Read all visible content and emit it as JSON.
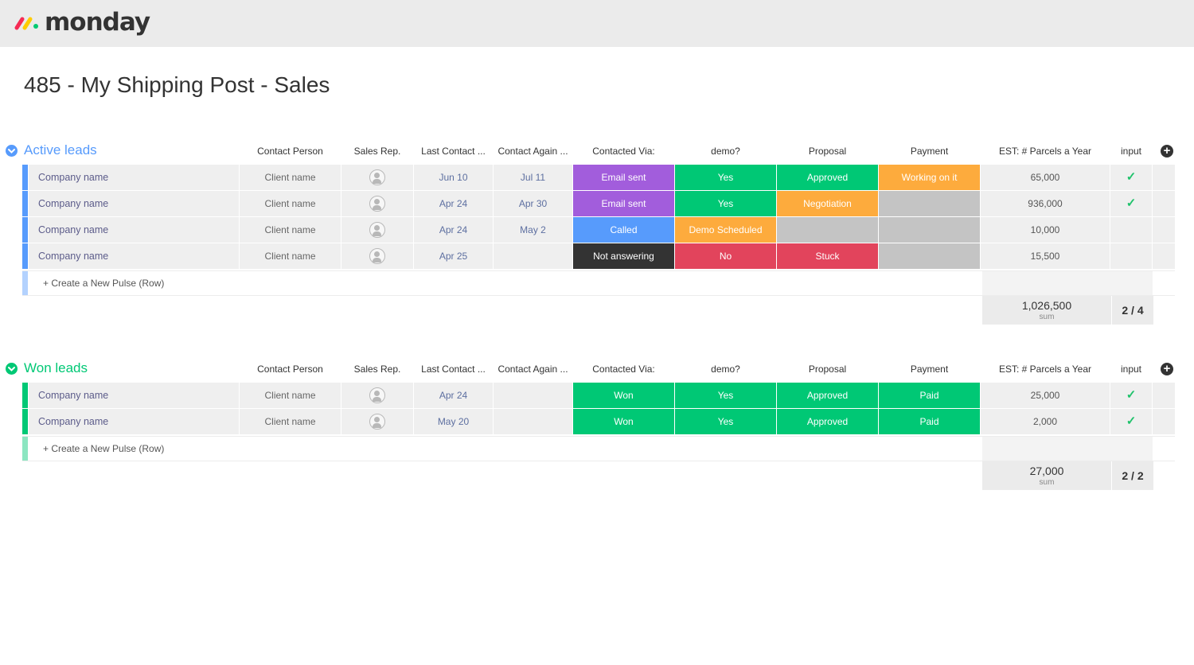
{
  "app": {
    "logo_text": "monday"
  },
  "page": {
    "title": "485 - My Shipping Post - Sales"
  },
  "columns": [
    "Contact Person",
    "Sales Rep.",
    "Last Contact ...",
    "Contact Again ...",
    "Contacted Via:",
    "demo?",
    "Proposal",
    "Payment",
    "EST: # Parcels a Year",
    "input"
  ],
  "colors": {
    "active_group": "#579bfc",
    "won_group": "#00c875",
    "purple": "#a25ddc",
    "green": "#00c875",
    "orange": "#fdab3d",
    "blue": "#579bfc",
    "dark": "#333333",
    "red": "#e2445c",
    "grey": "#c4c4c4"
  },
  "groups": [
    {
      "name": "Active leads",
      "color": "#579bfc",
      "new_row": "+ Create a New Pulse (Row)",
      "rows": [
        {
          "name": "Company name",
          "contact": "Client name",
          "last": "Jun 10",
          "again": "Jul 11",
          "via": {
            "text": "Email sent",
            "color": "purple"
          },
          "demo": {
            "text": "Yes",
            "color": "green"
          },
          "proposal": {
            "text": "Approved",
            "color": "green"
          },
          "payment": {
            "text": "Working on it",
            "color": "orange"
          },
          "parcels": "65,000",
          "input": true
        },
        {
          "name": "Company name",
          "contact": "Client name",
          "last": "Apr 24",
          "again": "Apr 30",
          "via": {
            "text": "Email sent",
            "color": "purple"
          },
          "demo": {
            "text": "Yes",
            "color": "green"
          },
          "proposal": {
            "text": "Negotiation",
            "color": "orange"
          },
          "payment": {
            "text": "",
            "color": "grey"
          },
          "parcels": "936,000",
          "input": true
        },
        {
          "name": "Company name",
          "contact": "Client name",
          "last": "Apr 24",
          "again": "May 2",
          "via": {
            "text": "Called",
            "color": "blue"
          },
          "demo": {
            "text": "Demo Scheduled",
            "color": "orange"
          },
          "proposal": {
            "text": "",
            "color": "grey"
          },
          "payment": {
            "text": "",
            "color": "grey"
          },
          "parcels": "10,000",
          "input": false
        },
        {
          "name": "Company name",
          "contact": "Client name",
          "last": "Apr 25",
          "again": "",
          "via": {
            "text": "Not answering",
            "color": "dark"
          },
          "demo": {
            "text": "No",
            "color": "red"
          },
          "proposal": {
            "text": "Stuck",
            "color": "red"
          },
          "payment": {
            "text": "",
            "color": "grey"
          },
          "parcels": "15,500",
          "input": false
        }
      ],
      "summary": {
        "sum": "1,026,500",
        "sum_label": "sum",
        "input": "2 / 4"
      }
    },
    {
      "name": "Won leads",
      "color": "#00c875",
      "new_row": "+ Create a New Pulse (Row)",
      "rows": [
        {
          "name": "Company name",
          "contact": "Client name",
          "last": "Apr 24",
          "again": "",
          "via": {
            "text": "Won",
            "color": "green"
          },
          "demo": {
            "text": "Yes",
            "color": "green"
          },
          "proposal": {
            "text": "Approved",
            "color": "green"
          },
          "payment": {
            "text": "Paid",
            "color": "green"
          },
          "parcels": "25,000",
          "input": true
        },
        {
          "name": "Company name",
          "contact": "Client name",
          "last": "May 20",
          "again": "",
          "via": {
            "text": "Won",
            "color": "green"
          },
          "demo": {
            "text": "Yes",
            "color": "green"
          },
          "proposal": {
            "text": "Approved",
            "color": "green"
          },
          "payment": {
            "text": "Paid",
            "color": "green"
          },
          "parcels": "2,000",
          "input": true
        }
      ],
      "summary": {
        "sum": "27,000",
        "sum_label": "sum",
        "input": "2 / 2"
      }
    }
  ]
}
